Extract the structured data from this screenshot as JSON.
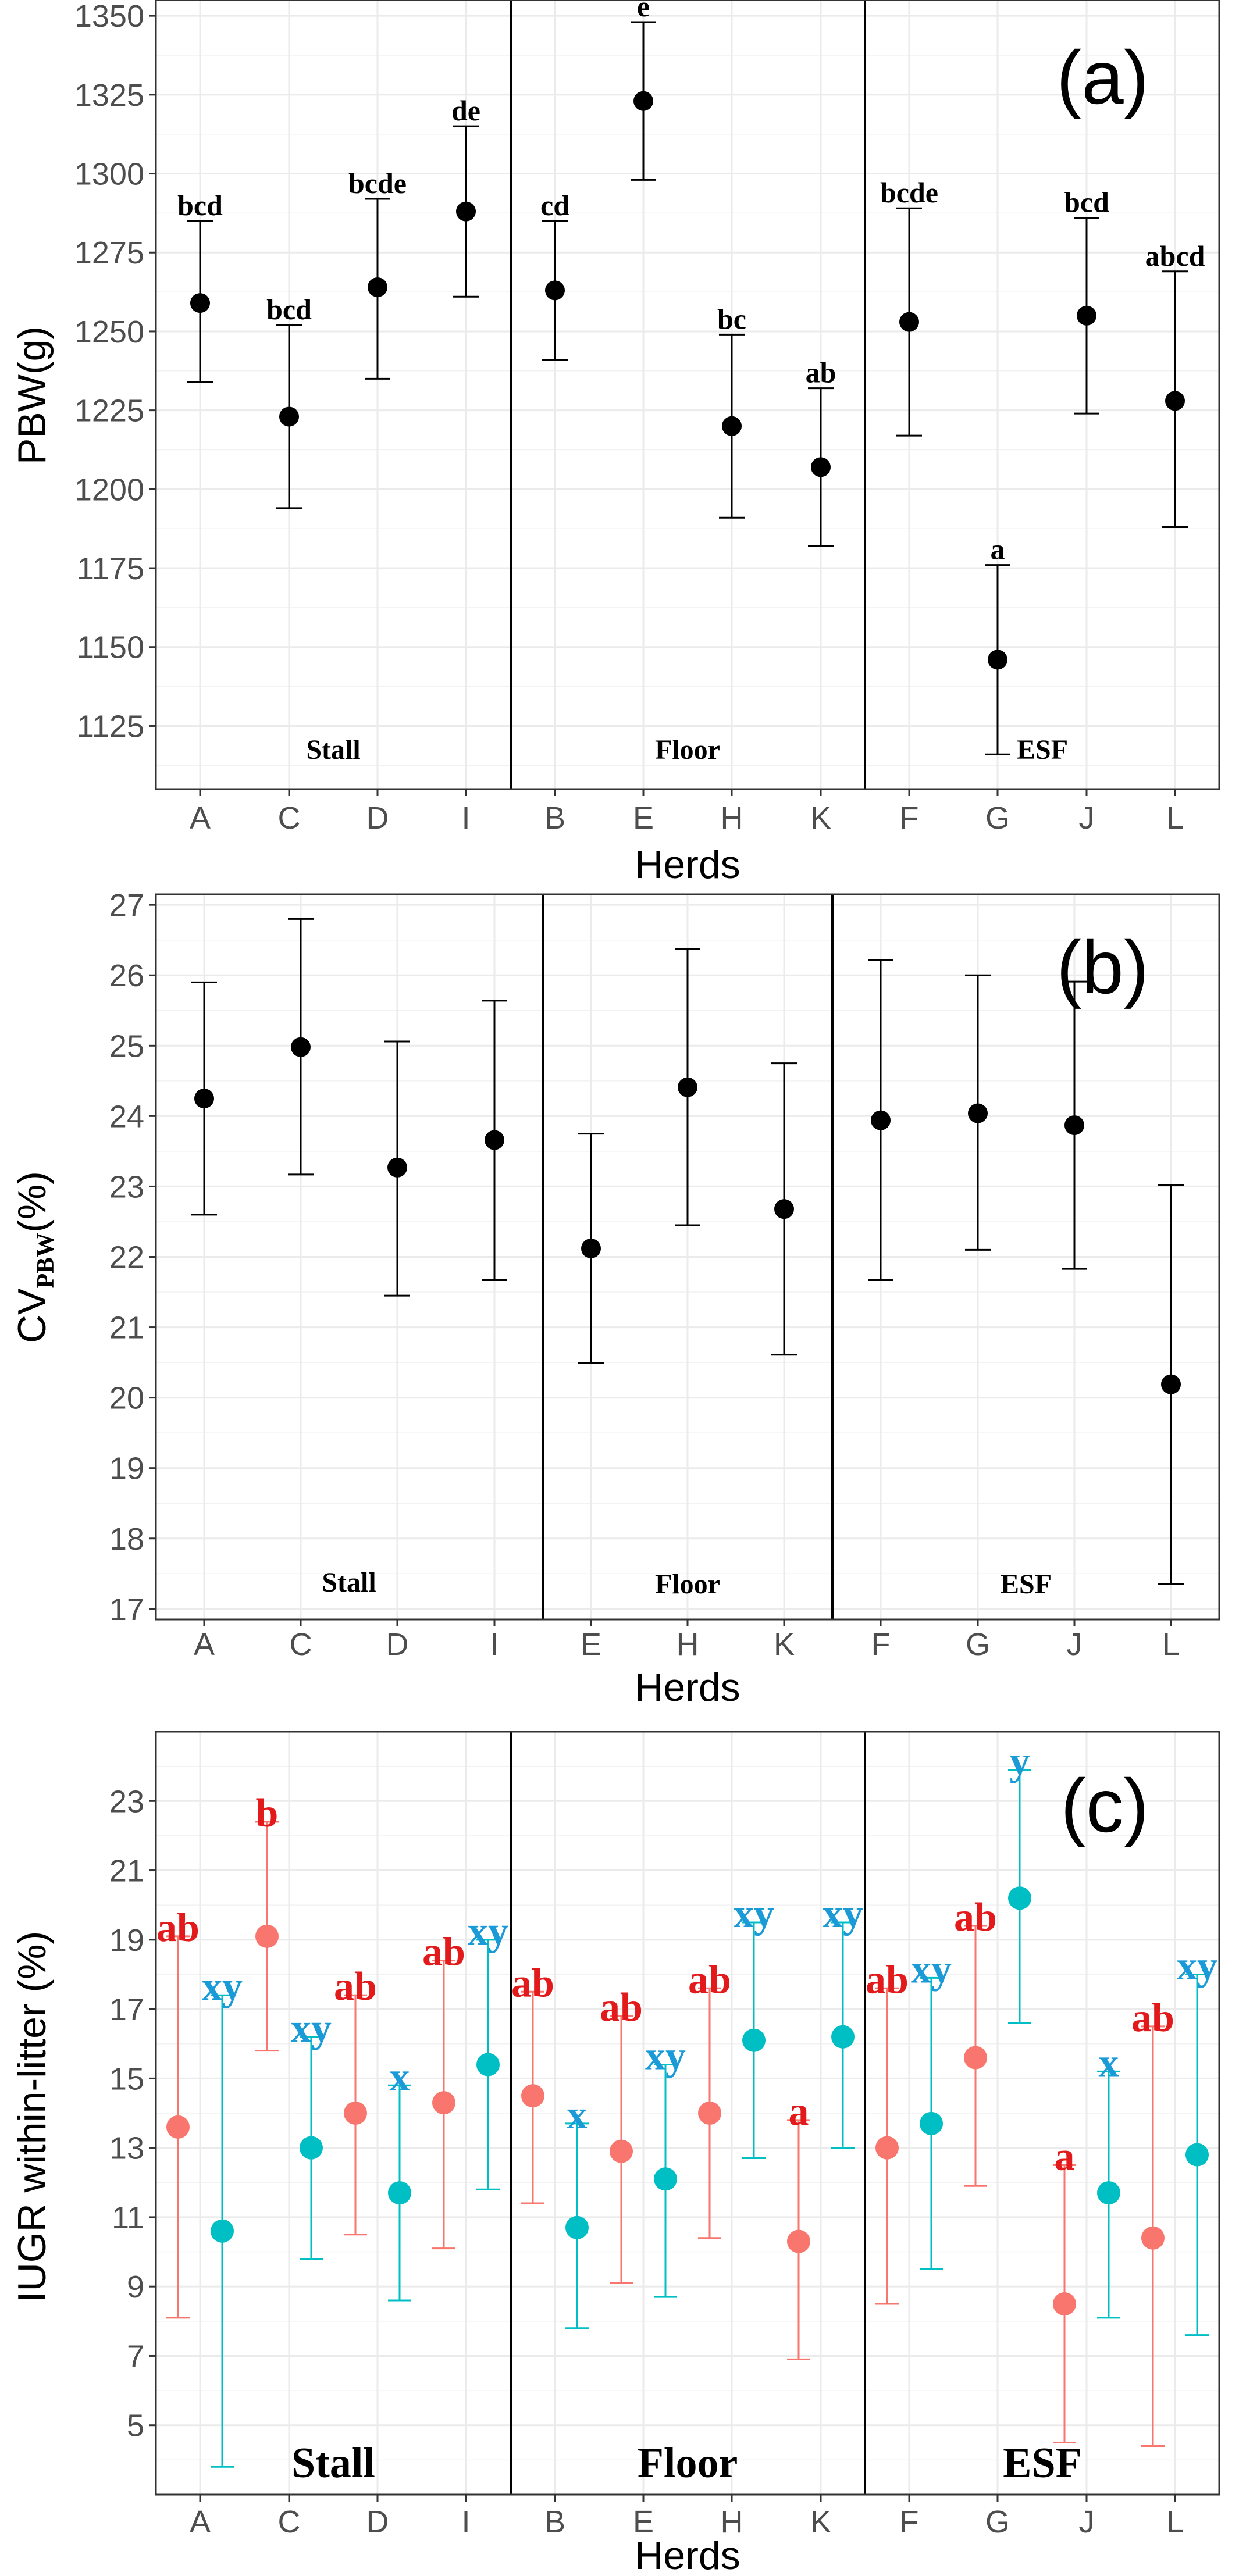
{
  "chart_data": [
    {
      "type": "scatter",
      "panel_label": "(a)",
      "xlabel": "Herds",
      "ylabel": "PBW(g)",
      "ylim": [
        1105,
        1355
      ],
      "yticks": [
        "1125",
        "1150",
        "1175",
        "1200",
        "1225",
        "1250",
        "1275",
        "1300",
        "1325",
        "1350"
      ],
      "groups": [
        {
          "name": "Stall",
          "herds": [
            {
              "herd": "A",
              "mean": 1259,
              "lower": 1234,
              "upper": 1285,
              "sig": "bcd"
            },
            {
              "herd": "C",
              "mean": 1223,
              "lower": 1194,
              "upper": 1252,
              "sig": "bcd"
            },
            {
              "herd": "D",
              "mean": 1264,
              "lower": 1235,
              "upper": 1292,
              "sig": "bcde"
            },
            {
              "herd": "I",
              "mean": 1288,
              "lower": 1261,
              "upper": 1315,
              "sig": "de"
            }
          ]
        },
        {
          "name": "Floor",
          "herds": [
            {
              "herd": "B",
              "mean": 1263,
              "lower": 1241,
              "upper": 1285,
              "sig": "cd"
            },
            {
              "herd": "E",
              "mean": 1323,
              "lower": 1298,
              "upper": 1348,
              "sig": "e"
            },
            {
              "herd": "H",
              "mean": 1220,
              "lower": 1191,
              "upper": 1249,
              "sig": "bc"
            },
            {
              "herd": "K",
              "mean": 1207,
              "lower": 1182,
              "upper": 1232,
              "sig": "ab"
            }
          ]
        },
        {
          "name": "ESF",
          "herds": [
            {
              "herd": "F",
              "mean": 1253,
              "lower": 1217,
              "upper": 1289,
              "sig": "bcde"
            },
            {
              "herd": "G",
              "mean": 1146,
              "lower": 1116,
              "upper": 1176,
              "sig": "a"
            },
            {
              "herd": "J",
              "mean": 1255,
              "lower": 1224,
              "upper": 1286,
              "sig": "bcd"
            },
            {
              "herd": "L",
              "mean": 1228,
              "lower": 1188,
              "upper": 1269,
              "sig": "abcd"
            }
          ]
        }
      ]
    },
    {
      "type": "scatter",
      "panel_label": "(b)",
      "xlabel": "Herds",
      "ylabel_main": "CV",
      "ylabel_sub": "PBW",
      "ylabel_tail": "(%)",
      "ylim": [
        16.85,
        27.15
      ],
      "yticks": [
        "17",
        "18",
        "19",
        "20",
        "21",
        "22",
        "23",
        "24",
        "25",
        "26",
        "27"
      ],
      "groups": [
        {
          "name": "Stall",
          "herds": [
            {
              "herd": "A",
              "mean": 24.25,
              "lower": 22.6,
              "upper": 25.9
            },
            {
              "herd": "C",
              "mean": 24.98,
              "lower": 23.17,
              "upper": 26.8
            },
            {
              "herd": "D",
              "mean": 23.27,
              "lower": 21.45,
              "upper": 25.06
            },
            {
              "herd": "I",
              "mean": 23.66,
              "lower": 21.67,
              "upper": 25.64
            }
          ]
        },
        {
          "name": "Floor",
          "herds": [
            {
              "herd": "E",
              "mean": 22.12,
              "lower": 20.49,
              "upper": 23.75
            },
            {
              "herd": "H",
              "mean": 24.41,
              "lower": 22.45,
              "upper": 26.37
            },
            {
              "herd": "K",
              "mean": 22.68,
              "lower": 20.61,
              "upper": 24.75
            }
          ]
        },
        {
          "name": "ESF",
          "herds": [
            {
              "herd": "F",
              "mean": 23.94,
              "lower": 21.67,
              "upper": 26.22
            },
            {
              "herd": "G",
              "mean": 24.04,
              "lower": 22.1,
              "upper": 26.0
            },
            {
              "herd": "J",
              "mean": 23.87,
              "lower": 21.83,
              "upper": 25.91
            },
            {
              "herd": "L",
              "mean": 20.19,
              "lower": 17.35,
              "upper": 23.02
            }
          ]
        }
      ]
    },
    {
      "type": "scatter",
      "panel_label": "(c)",
      "xlabel": "Herds",
      "ylabel": "IUGR within-litter (%)",
      "ylim": [
        3,
        25
      ],
      "yticks": [
        "5",
        "7",
        "9",
        "11",
        "13",
        "15",
        "17",
        "19",
        "21",
        "23"
      ],
      "series_colors": {
        "red": "#f8766d",
        "teal": "#00bfc4",
        "red_text": "#e31a1c",
        "teal_text": "#1a9ad6"
      },
      "groups": [
        {
          "name": "Stall",
          "herds": [
            {
              "herd": "A",
              "red": {
                "mean": 13.6,
                "lower": 8.1,
                "upper": 19.1,
                "sig": "ab"
              },
              "teal": {
                "mean": 10.6,
                "lower": 3.8,
                "upper": 17.4,
                "sig": "xy"
              }
            },
            {
              "herd": "C",
              "red": {
                "mean": 19.1,
                "lower": 15.8,
                "upper": 22.4,
                "sig": "b"
              },
              "teal": {
                "mean": 13.0,
                "lower": 9.8,
                "upper": 16.2,
                "sig": "xy"
              }
            },
            {
              "herd": "D",
              "red": {
                "mean": 14.0,
                "lower": 10.5,
                "upper": 17.4,
                "sig": "ab"
              },
              "teal": {
                "mean": 11.7,
                "lower": 8.6,
                "upper": 14.8,
                "sig": "x"
              }
            },
            {
              "herd": "I",
              "red": {
                "mean": 14.3,
                "lower": 10.1,
                "upper": 18.4,
                "sig": "ab"
              },
              "teal": {
                "mean": 15.4,
                "lower": 11.8,
                "upper": 19.0,
                "sig": "xy"
              }
            }
          ]
        },
        {
          "name": "Floor",
          "herds": [
            {
              "herd": "B",
              "red": {
                "mean": 14.5,
                "lower": 11.4,
                "upper": 17.5,
                "sig": "ab"
              },
              "teal": {
                "mean": 10.7,
                "lower": 7.8,
                "upper": 13.7,
                "sig": "x"
              }
            },
            {
              "herd": "E",
              "red": {
                "mean": 12.9,
                "lower": 9.1,
                "upper": 16.8,
                "sig": "ab"
              },
              "teal": {
                "mean": 12.1,
                "lower": 8.7,
                "upper": 15.4,
                "sig": "xy"
              }
            },
            {
              "herd": "H",
              "red": {
                "mean": 14.0,
                "lower": 10.4,
                "upper": 17.6,
                "sig": "ab"
              },
              "teal": {
                "mean": 16.1,
                "lower": 12.7,
                "upper": 19.5,
                "sig": "xy"
              }
            },
            {
              "herd": "K",
              "red": {
                "mean": 10.3,
                "lower": 6.9,
                "upper": 13.8,
                "sig": "a"
              },
              "teal": {
                "mean": 16.2,
                "lower": 13.0,
                "upper": 19.5,
                "sig": "xy"
              }
            }
          ]
        },
        {
          "name": "ESF",
          "herds": [
            {
              "herd": "F",
              "red": {
                "mean": 13.0,
                "lower": 8.5,
                "upper": 17.6,
                "sig": "ab"
              },
              "teal": {
                "mean": 13.7,
                "lower": 9.5,
                "upper": 17.9,
                "sig": "xy"
              }
            },
            {
              "herd": "G",
              "red": {
                "mean": 15.6,
                "lower": 11.9,
                "upper": 19.4,
                "sig": "ab"
              },
              "teal": {
                "mean": 20.2,
                "lower": 16.6,
                "upper": 23.9,
                "sig": "y"
              }
            },
            {
              "herd": "J",
              "red": {
                "mean": 8.5,
                "lower": 4.5,
                "upper": 12.5,
                "sig": "a"
              },
              "teal": {
                "mean": 11.7,
                "lower": 8.1,
                "upper": 15.2,
                "sig": "x"
              }
            },
            {
              "herd": "L",
              "red": {
                "mean": 10.4,
                "lower": 4.4,
                "upper": 16.5,
                "sig": "ab"
              },
              "teal": {
                "mean": 12.8,
                "lower": 7.6,
                "upper": 18.0,
                "sig": "xy"
              }
            }
          ]
        }
      ]
    }
  ]
}
